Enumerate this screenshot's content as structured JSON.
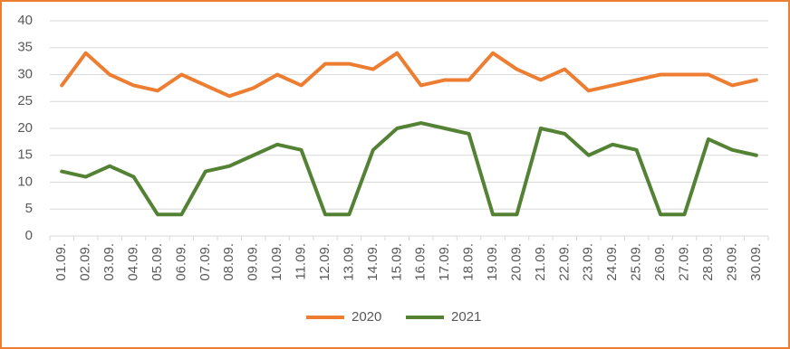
{
  "chart_data": {
    "type": "line",
    "categories": [
      "01.09.",
      "02.09.",
      "03.09.",
      "04.09.",
      "05.09.",
      "06.09.",
      "07.09.",
      "08.09.",
      "09.09.",
      "10.09.",
      "11.09.",
      "12.09.",
      "13.09.",
      "14.09.",
      "15.09.",
      "16.09.",
      "17.09.",
      "18.09.",
      "19.09.",
      "20.09.",
      "21.09.",
      "22.09.",
      "23.09.",
      "24.09.",
      "25.09.",
      "26.09.",
      "27.09.",
      "28.09.",
      "29.09.",
      "30.09."
    ],
    "series": [
      {
        "name": "2020",
        "color": "#ed7d31",
        "values": [
          28,
          34,
          30,
          28,
          27,
          30,
          28,
          26,
          27.5,
          30,
          28,
          32,
          32,
          31,
          34,
          28,
          29,
          29,
          34,
          31,
          29,
          31,
          27,
          28,
          29,
          30,
          30,
          30,
          28,
          29
        ]
      },
      {
        "name": "2021",
        "color": "#548235",
        "values": [
          12,
          11,
          13,
          11,
          4,
          4,
          12,
          13,
          15,
          17,
          16,
          4,
          4,
          16,
          20,
          21,
          20,
          19,
          4,
          4,
          20,
          19,
          15,
          17,
          16,
          4,
          4,
          18,
          16,
          15
        ]
      }
    ],
    "ylim": [
      0,
      40
    ],
    "yticks": [
      0,
      5,
      10,
      15,
      20,
      25,
      30,
      35,
      40
    ],
    "grid": true,
    "legend": "bottom"
  }
}
